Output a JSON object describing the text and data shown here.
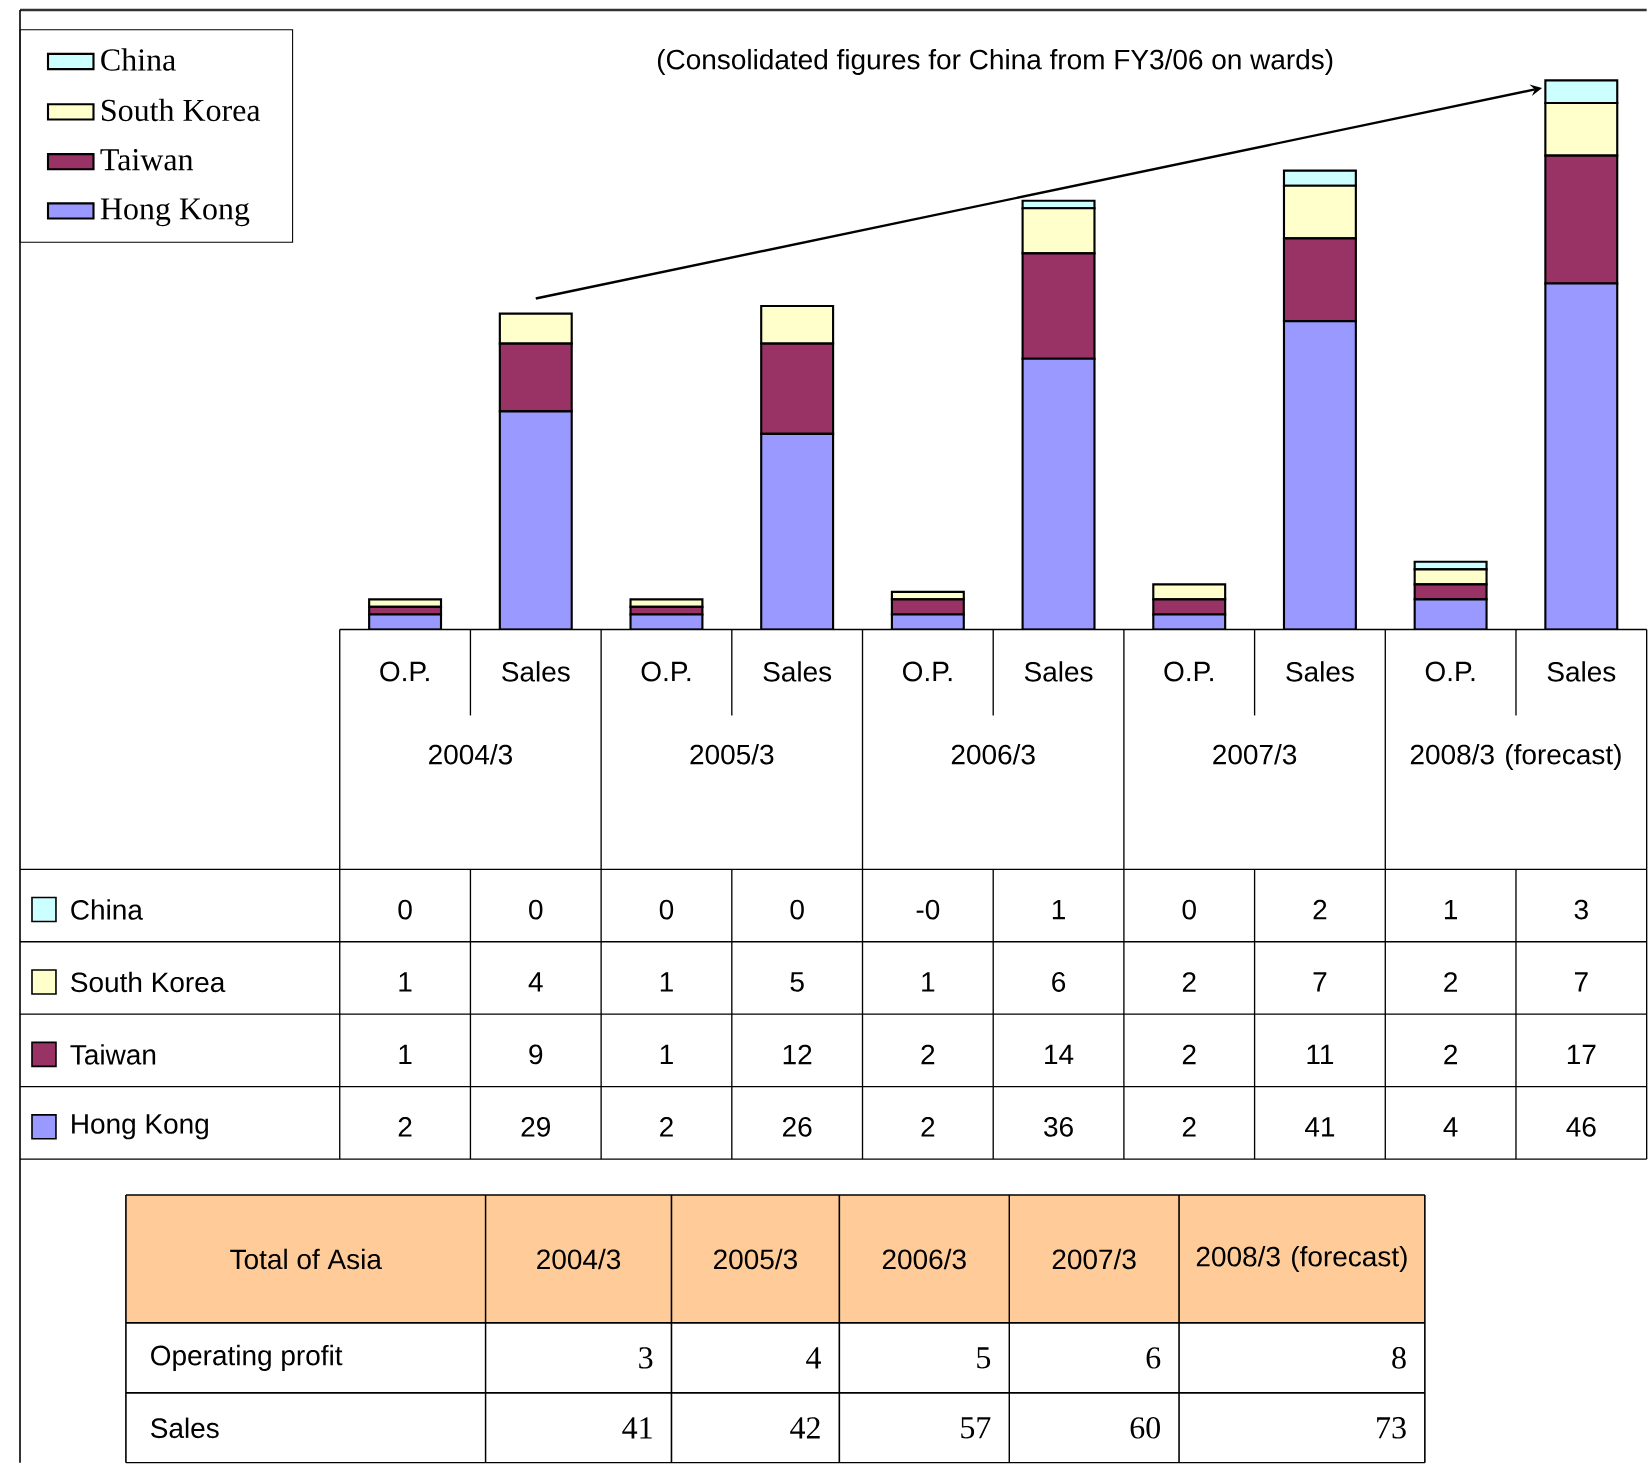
{
  "chart_data": {
    "type": "bar",
    "stacked": true,
    "legend": "top left",
    "categories": [
      "O.P.",
      "Sales",
      "O.P.",
      "Sales",
      "O.P.",
      "Sales",
      "O.P.",
      "Sales",
      "O.P.",
      "Sales"
    ],
    "series": [
      {
        "name": "Hong Kong",
        "color": "#9999ff",
        "values": [
          2,
          29,
          2,
          26,
          2,
          36,
          2,
          41,
          4,
          46
        ],
        "value_labels": [
          "2",
          "29",
          "2",
          "26",
          "2",
          "36",
          "2",
          "41",
          "4",
          "46"
        ]
      },
      {
        "name": "Taiwan",
        "color": "#993366",
        "values": [
          1,
          9,
          1,
          12,
          2,
          14,
          2,
          11,
          2,
          17
        ],
        "value_labels": [
          "1",
          "9",
          "1",
          "12",
          "2",
          "14",
          "2",
          "11",
          "2",
          "17"
        ]
      },
      {
        "name": "South Korea",
        "color": "#ffffcc",
        "values": [
          1,
          4,
          1,
          5,
          1,
          6,
          2,
          7,
          2,
          7
        ],
        "value_labels": [
          "1",
          "4",
          "1",
          "5",
          "1",
          "6",
          "2",
          "7",
          "2",
          "7"
        ]
      },
      {
        "name": "China",
        "color": "#ccffff",
        "values": [
          0,
          0,
          0,
          0,
          0,
          1,
          0,
          2,
          1,
          3
        ],
        "value_labels": [
          "0",
          "0",
          "0",
          "0",
          "-0",
          "1",
          "0",
          "2",
          "1",
          "3"
        ]
      }
    ],
    "annotations": [
      "(Consolidated figures for China from FY3/06  on wards)",
      "2004/3",
      "2005/3",
      "2006/3",
      "2007/3",
      "2008/3 (forecast)",
      "Total of Asia",
      "Operating profit",
      "Sales",
      "3",
      "4",
      "5",
      "6",
      "8",
      "41",
      "42",
      "57",
      "60",
      "73"
    ]
  }
}
